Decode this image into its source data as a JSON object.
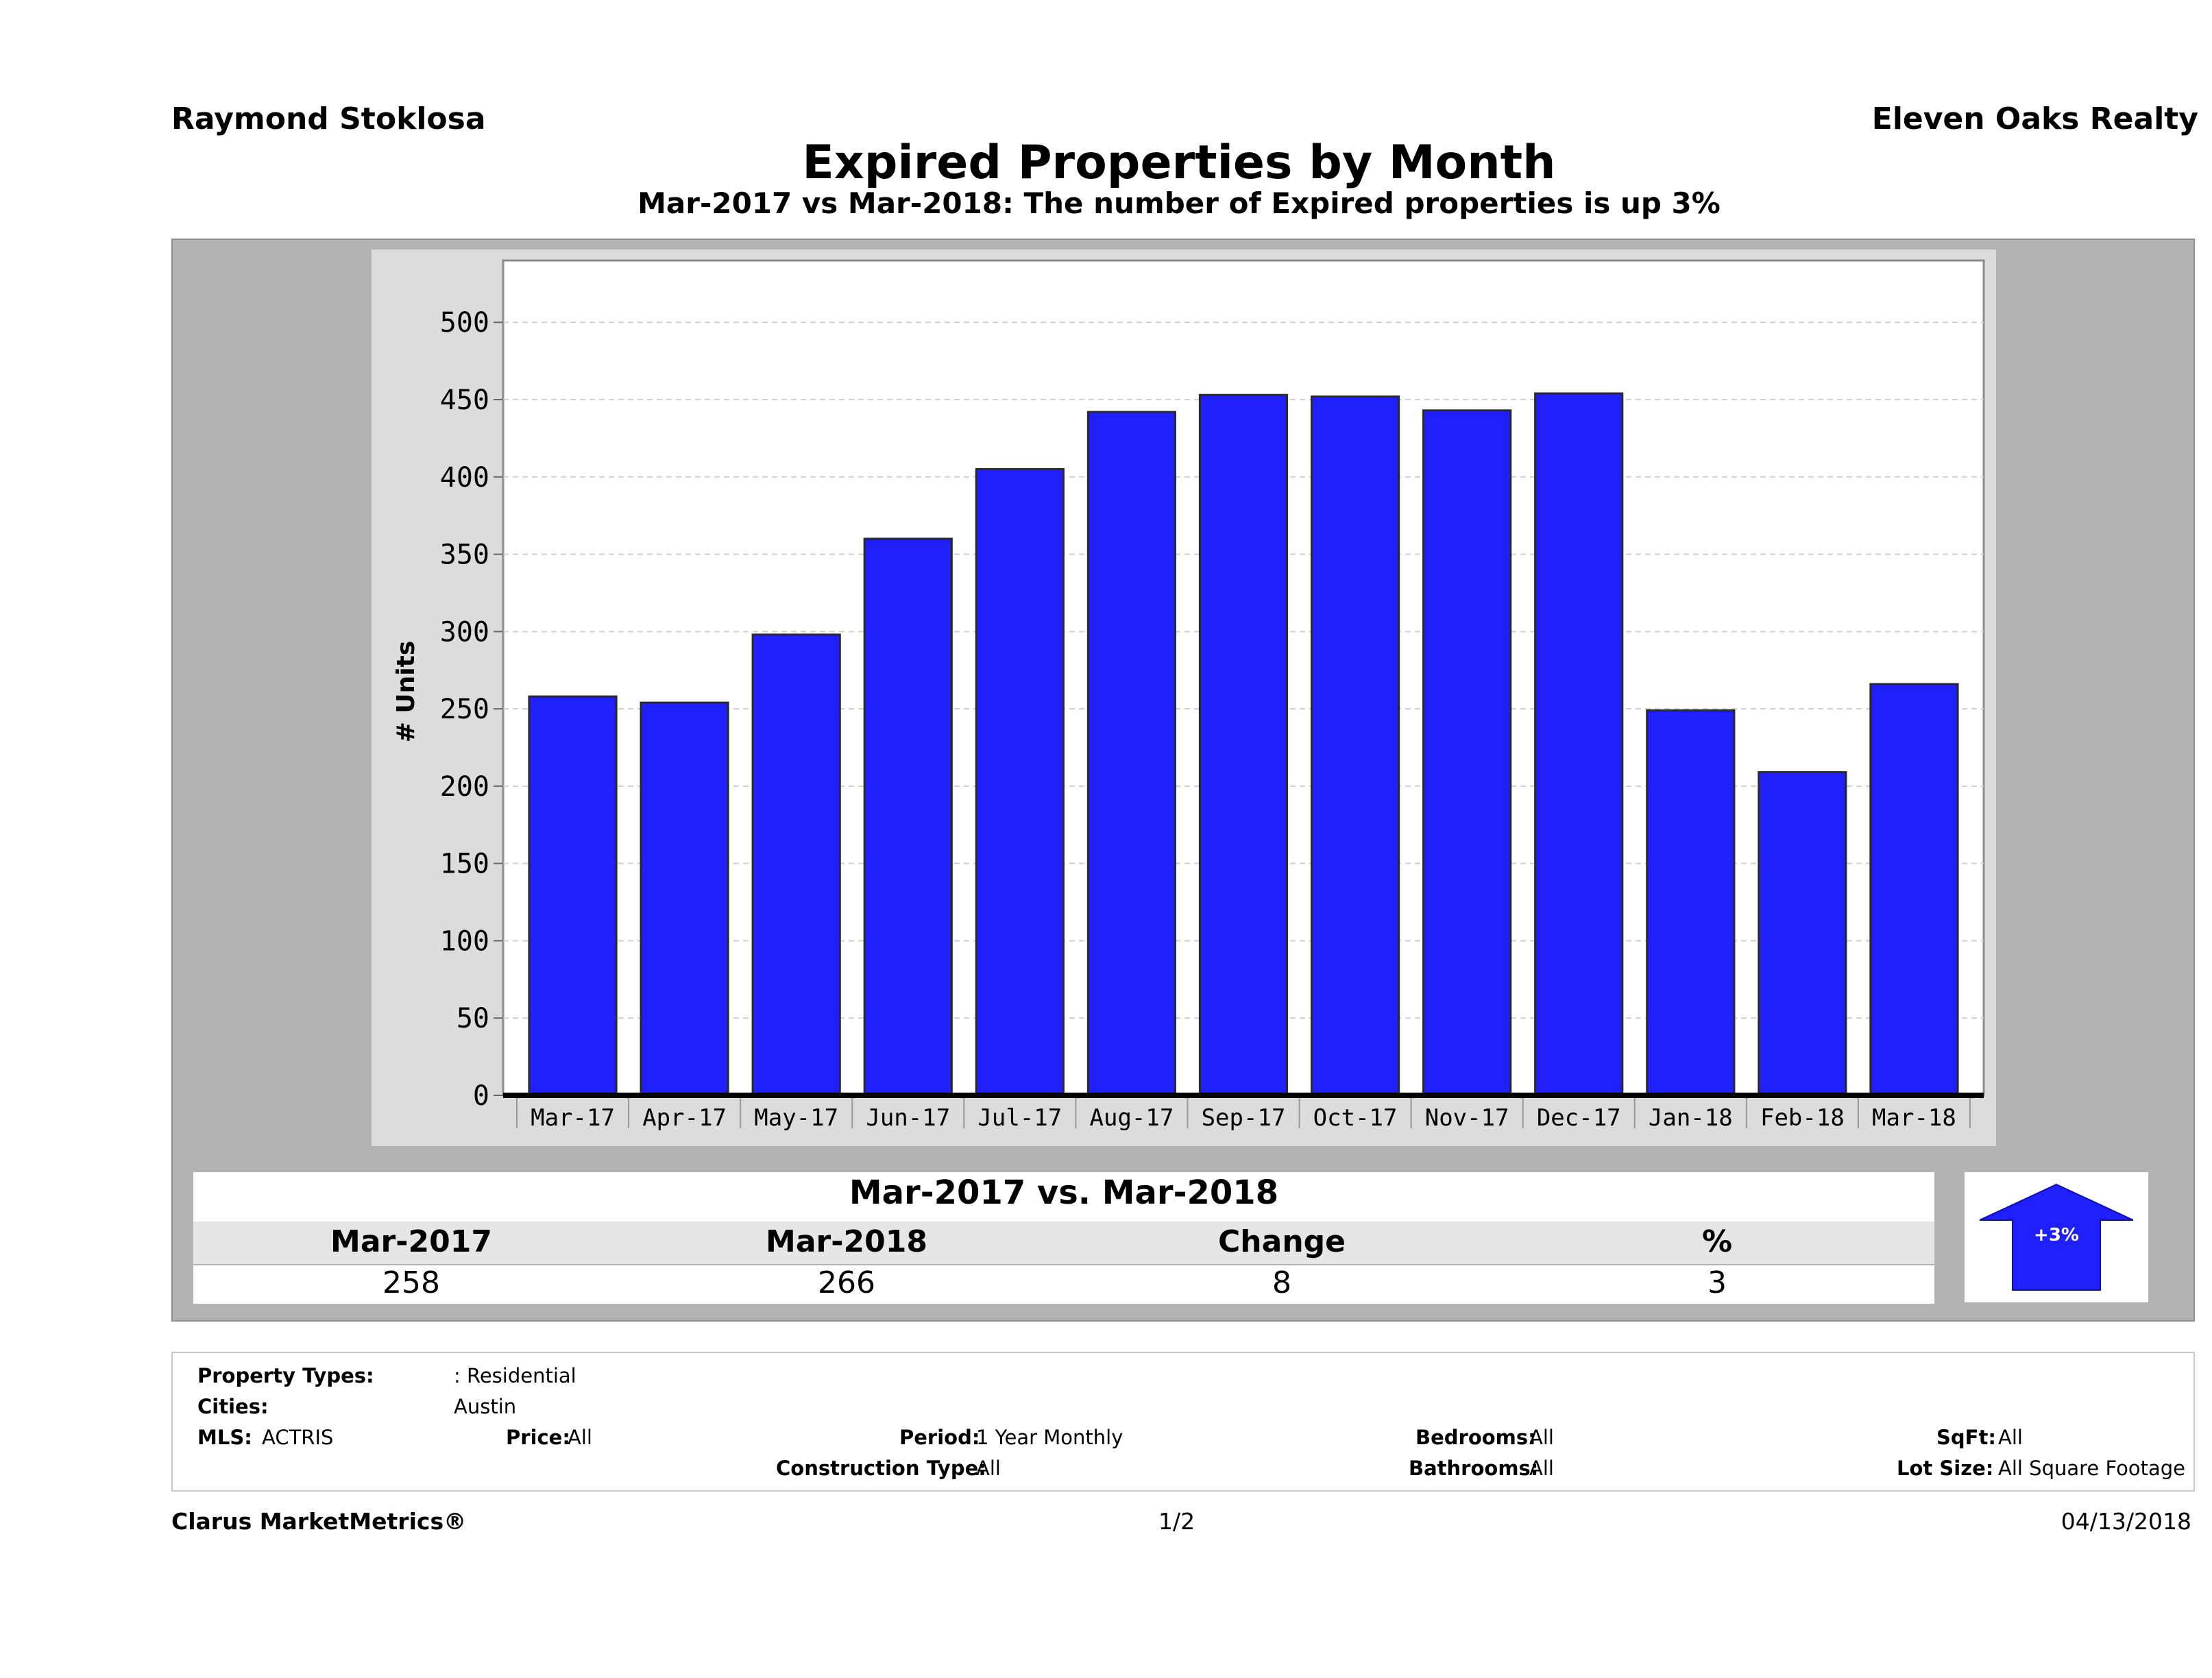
{
  "header": {
    "agent": "Raymond Stoklosa",
    "brokerage": "Eleven Oaks Realty",
    "title": "Expired Properties by Month",
    "subtitle": "Mar-2017 vs Mar-2018: The number of Expired  properties is up 3%"
  },
  "chart_data": {
    "type": "bar",
    "title": "Expired Properties by Month",
    "xlabel": "",
    "ylabel": "# Units",
    "categories": [
      "Mar-17",
      "Apr-17",
      "May-17",
      "Jun-17",
      "Jul-17",
      "Aug-17",
      "Sep-17",
      "Oct-17",
      "Nov-17",
      "Dec-17",
      "Jan-18",
      "Feb-18",
      "Mar-18"
    ],
    "values": [
      258,
      254,
      298,
      360,
      405,
      442,
      453,
      452,
      443,
      454,
      249,
      209,
      266
    ],
    "yticks": [
      0,
      50,
      100,
      150,
      200,
      250,
      300,
      350,
      400,
      450,
      500
    ],
    "ylim": [
      0,
      540
    ],
    "grid": true,
    "bar_color": "#1f1ffc"
  },
  "comparison": {
    "title": "Mar-2017 vs. Mar-2018",
    "headers": [
      "Mar-2017",
      "Mar-2018",
      "Change",
      "%"
    ],
    "values": [
      "258",
      "266",
      "8",
      "3"
    ],
    "arrow_label": "+3%",
    "arrow_icon": "up-arrow-icon",
    "arrow_color": "#1f1ffc"
  },
  "criteria": {
    "property_types_label": "Property Types:",
    "property_types_value": ": Residential",
    "cities_label": "Cities:",
    "cities_value": "Austin",
    "mls_label": "MLS:",
    "mls_value": "ACTRIS",
    "price_label": "Price:",
    "price_value": "All",
    "period_label": "Period:",
    "period_value": "1 Year Monthly",
    "construction_label": "Construction Type:",
    "construction_value": "All",
    "bedrooms_label": "Bedrooms:",
    "bedrooms_value": "All",
    "bathrooms_label": "Bathrooms:",
    "bathrooms_value": "All",
    "sqft_label": "SqFt:",
    "sqft_value": "All",
    "lotsize_label": "Lot Size:",
    "lotsize_value": "All Square Footage"
  },
  "footer": {
    "brand": "Clarus MarketMetrics®",
    "page": "1/2",
    "date": "04/13/2018"
  }
}
